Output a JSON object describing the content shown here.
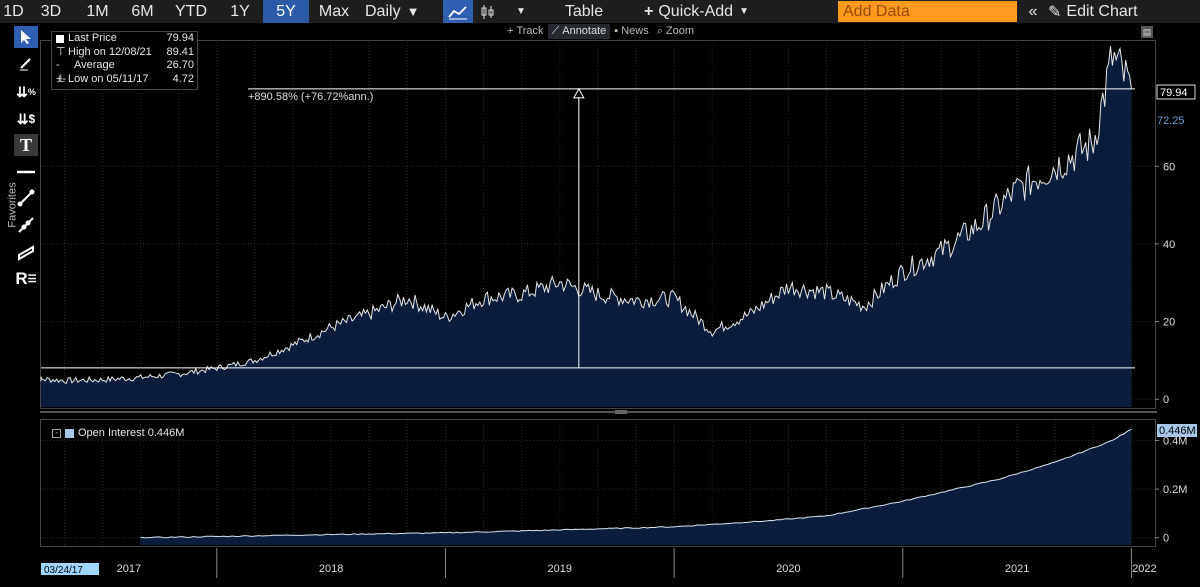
{
  "toolbar": {
    "periods": [
      "1D",
      "3D",
      "1M",
      "6M",
      "YTD",
      "1Y",
      "5Y",
      "Max"
    ],
    "active_period": "5Y",
    "frequency": "Daily",
    "table_label": "Table",
    "quick_add_label": "Quick-Add",
    "add_data_placeholder": "Add Data",
    "edit_chart_label": "Edit Chart"
  },
  "subbar": {
    "items": [
      "Track",
      "Annotate",
      "News",
      "Zoom"
    ],
    "active": "Annotate"
  },
  "sidebar": {
    "favorites_label": "Favorites",
    "tools": [
      "cursor-icon",
      "pen-icon",
      "percent-down-icon",
      "dollar-down-icon",
      "text-tool-icon",
      "horizontal-line-icon",
      "trend-line-icon",
      "segment-icon",
      "channel-icon",
      "r-menu-icon"
    ],
    "tool_text": {
      "percent": "%",
      "dollar": "$",
      "text": "T",
      "r": "R"
    }
  },
  "legend": {
    "rows": [
      {
        "label": "Last Price",
        "value": "79.94"
      },
      {
        "label": "High on 12/08/21",
        "value": "89.41"
      },
      {
        "label": "Average",
        "value": "26.70"
      },
      {
        "label": "Low on 05/11/17",
        "value": "4.72"
      }
    ]
  },
  "annotation": {
    "text": "+890.58% (+76.72%ann.)"
  },
  "price_tags": {
    "last": "79.94",
    "other": "72.25"
  },
  "open_interest": {
    "label": "Open Interest 0.446M",
    "tag": "0.446M"
  },
  "colors": {
    "area_fill": "#0b1d3a",
    "line": "#e6e6e6",
    "toolbar_active": "#2a5aa8",
    "add_data": "#ff9a1f",
    "oi_tag": "#a7c6e8"
  },
  "x_axis": {
    "start_label": "03/24/17",
    "year_labels": [
      "2017",
      "2018",
      "2019",
      "2020",
      "2021",
      "2022"
    ]
  },
  "chart_data": [
    {
      "type": "area",
      "title": "",
      "xlabel": "",
      "ylabel": "",
      "ylim": [
        -2,
        92
      ],
      "yticks": [
        0,
        20,
        40,
        60
      ],
      "x": [
        "2017-03",
        "2017-05",
        "2017-07",
        "2017-09",
        "2017-11",
        "2018-01",
        "2018-03",
        "2018-05",
        "2018-07",
        "2018-09",
        "2018-11",
        "2019-01",
        "2019-03",
        "2019-05",
        "2019-07",
        "2019-09",
        "2019-11",
        "2020-01",
        "2020-03",
        "2020-05",
        "2020-07",
        "2020-09",
        "2020-11",
        "2021-01",
        "2021-03",
        "2021-05",
        "2021-07",
        "2021-09",
        "2021-11",
        "2021-12",
        "2022-01"
      ],
      "values": [
        5.5,
        4.8,
        5.0,
        5.6,
        6.5,
        8.0,
        10.0,
        14.0,
        18.5,
        22.0,
        26.0,
        21.0,
        26.0,
        27.0,
        30.0,
        27.0,
        25.5,
        26.0,
        17.5,
        22.0,
        29.0,
        27.5,
        24.0,
        33.0,
        38.0,
        45.0,
        54.0,
        60.0,
        66.0,
        88.0,
        80.0
      ],
      "last_price": 79.94,
      "high": 89.41,
      "average": 26.7,
      "low": 4.72,
      "annotation": {
        "from": 8.07,
        "to": 79.94,
        "x": "2019-08"
      }
    },
    {
      "type": "area",
      "title": "",
      "ylim": [
        -0.03,
        0.48
      ],
      "yticks": [
        0,
        0.2,
        0.4
      ],
      "ytick_labels": [
        "0",
        "0.2M",
        "0.4M"
      ],
      "x": [
        "2017-09",
        "2018-01",
        "2018-06",
        "2019-01",
        "2019-06",
        "2020-01",
        "2020-06",
        "2020-09",
        "2021-01",
        "2021-06",
        "2021-09",
        "2021-12",
        "2022-01"
      ],
      "values": [
        0.0,
        0.005,
        0.012,
        0.02,
        0.03,
        0.045,
        0.07,
        0.09,
        0.15,
        0.24,
        0.31,
        0.4,
        0.446
      ],
      "last": 0.446
    }
  ]
}
